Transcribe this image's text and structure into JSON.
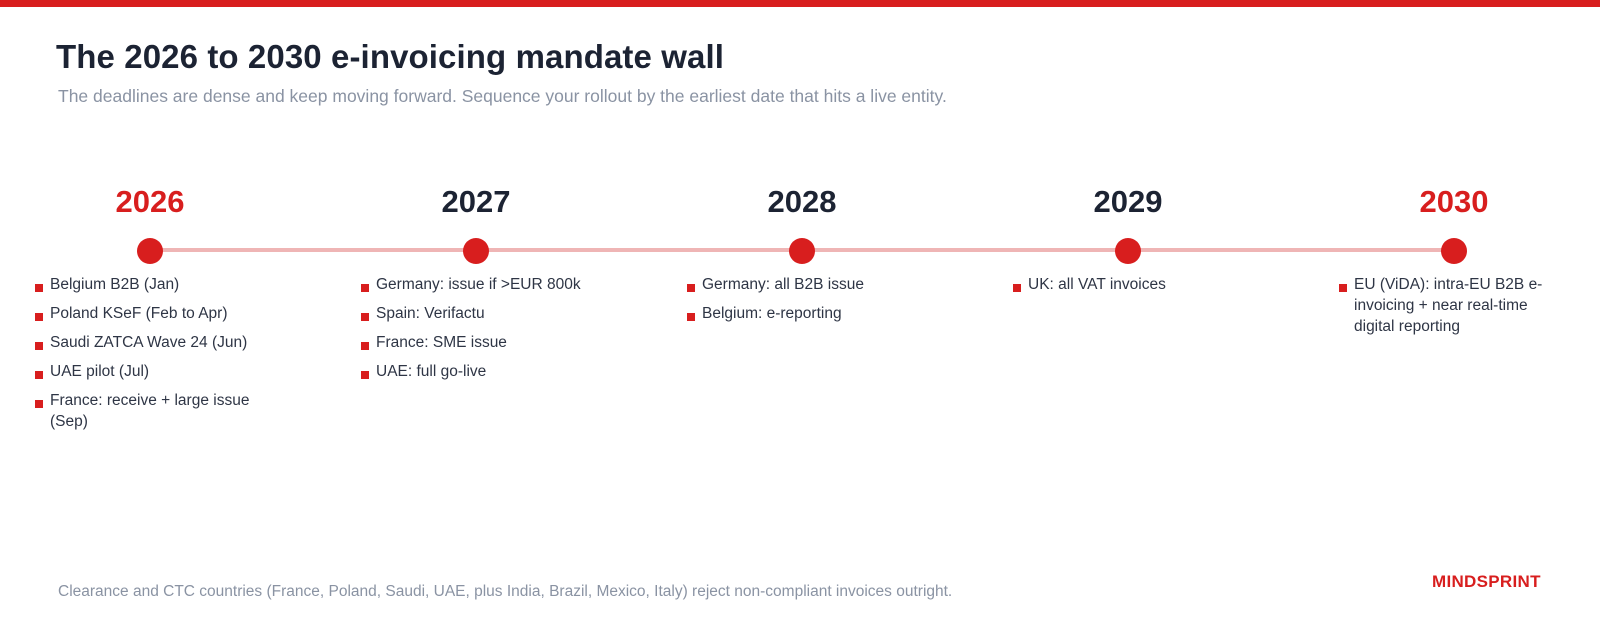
{
  "slide": {
    "title": "The 2026 to 2030 e-invoicing mandate wall",
    "subtitle": "The deadlines are dense and keep moving forward. Sequence your rollout by the earliest date that hits a live entity.",
    "footnote": "Clearance and CTC countries (France, Poland, Saudi, UAE, plus India, Brazil, Mexico, Italy) reject non-compliant invoices outright.",
    "brand": "MINDSPRINT"
  },
  "colors": {
    "accent": "#d81e1e",
    "timeline_line": "#efb5b5",
    "heading": "#1c2333",
    "muted": "#8a93a3"
  },
  "timeline": [
    {
      "year": "2026",
      "highlight": true,
      "items": [
        "Belgium B2B (Jan)",
        "Poland KSeF (Feb to Apr)",
        "Saudi ZATCA Wave 24 (Jun)",
        "UAE pilot (Jul)",
        "France: receive + large issue (Sep)"
      ]
    },
    {
      "year": "2027",
      "highlight": false,
      "items": [
        "Germany: issue if >EUR 800k",
        "Spain: Verifactu",
        "France: SME issue",
        "UAE: full go-live"
      ]
    },
    {
      "year": "2028",
      "highlight": false,
      "items": [
        "Germany: all B2B issue",
        "Belgium: e-reporting"
      ]
    },
    {
      "year": "2029",
      "highlight": false,
      "items": [
        "UK: all VAT invoices"
      ]
    },
    {
      "year": "2030",
      "highlight": true,
      "items": [
        "EU (ViDA): intra-EU B2B e-invoicing + near real-time digital reporting"
      ]
    }
  ]
}
